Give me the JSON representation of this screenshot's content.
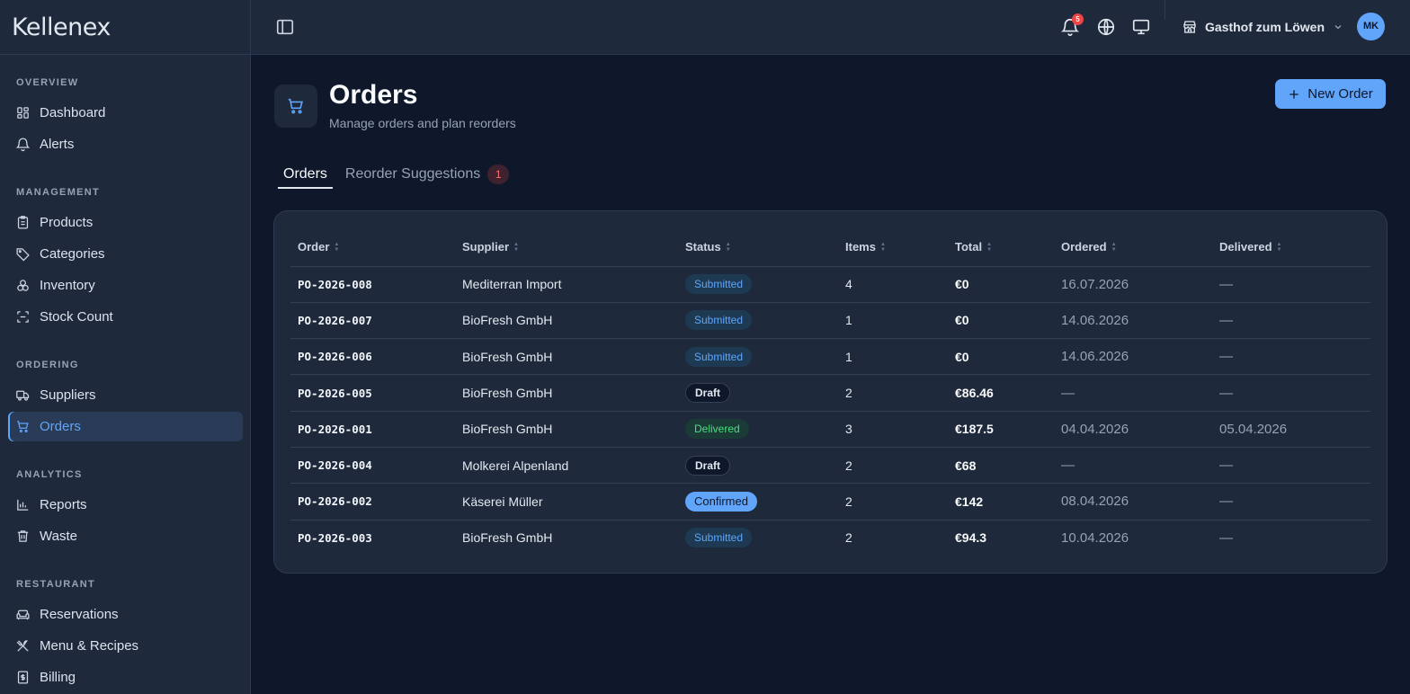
{
  "brand": "Kellenex",
  "sidebar": {
    "sections": [
      {
        "title": "OVERVIEW",
        "items": [
          {
            "label": "Dashboard",
            "icon": "dashboard-icon"
          },
          {
            "label": "Alerts",
            "icon": "bell-icon"
          }
        ]
      },
      {
        "title": "MANAGEMENT",
        "items": [
          {
            "label": "Products",
            "icon": "clipboard-icon"
          },
          {
            "label": "Categories",
            "icon": "tag-icon"
          },
          {
            "label": "Inventory",
            "icon": "boxes-icon"
          },
          {
            "label": "Stock Count",
            "icon": "scan-icon"
          }
        ]
      },
      {
        "title": "ORDERING",
        "items": [
          {
            "label": "Suppliers",
            "icon": "truck-icon"
          },
          {
            "label": "Orders",
            "icon": "cart-icon",
            "active": true
          }
        ]
      },
      {
        "title": "ANALYTICS",
        "items": [
          {
            "label": "Reports",
            "icon": "bar-chart-icon"
          },
          {
            "label": "Waste",
            "icon": "trash-icon"
          }
        ]
      },
      {
        "title": "RESTAURANT",
        "items": [
          {
            "label": "Reservations",
            "icon": "sofa-icon"
          },
          {
            "label": "Menu & Recipes",
            "icon": "utensils-icon"
          },
          {
            "label": "Billing",
            "icon": "receipt-icon"
          }
        ]
      }
    ]
  },
  "topbar": {
    "notification_count": "5",
    "venue": "Gasthof zum Löwen",
    "avatar": "MK"
  },
  "page": {
    "title": "Orders",
    "subtitle": "Manage orders and plan reorders",
    "new_order_label": "New Order"
  },
  "tabs": [
    {
      "label": "Orders",
      "active": true
    },
    {
      "label": "Reorder Suggestions",
      "badge": "1"
    }
  ],
  "table": {
    "headers": [
      "Order",
      "Supplier",
      "Status",
      "Items",
      "Total",
      "Ordered",
      "Delivered"
    ],
    "rows": [
      {
        "order": "PO-2026-008",
        "supplier": "Mediterran Import",
        "status": "Submitted",
        "items": "4",
        "total": "€0",
        "ordered": "16.07.2026",
        "delivered": "—"
      },
      {
        "order": "PO-2026-007",
        "supplier": "BioFresh GmbH",
        "status": "Submitted",
        "items": "1",
        "total": "€0",
        "ordered": "14.06.2026",
        "delivered": "—"
      },
      {
        "order": "PO-2026-006",
        "supplier": "BioFresh GmbH",
        "status": "Submitted",
        "items": "1",
        "total": "€0",
        "ordered": "14.06.2026",
        "delivered": "—"
      },
      {
        "order": "PO-2026-005",
        "supplier": "BioFresh GmbH",
        "status": "Draft",
        "items": "2",
        "total": "€86.46",
        "ordered": "—",
        "delivered": "—"
      },
      {
        "order": "PO-2026-001",
        "supplier": "BioFresh GmbH",
        "status": "Delivered",
        "items": "3",
        "total": "€187.5",
        "ordered": "04.04.2026",
        "delivered": "05.04.2026"
      },
      {
        "order": "PO-2026-004",
        "supplier": "Molkerei Alpenland",
        "status": "Draft",
        "items": "2",
        "total": "€68",
        "ordered": "—",
        "delivered": "—"
      },
      {
        "order": "PO-2026-002",
        "supplier": "Käserei Müller",
        "status": "Confirmed",
        "items": "2",
        "total": "€142",
        "ordered": "08.04.2026",
        "delivered": "—"
      },
      {
        "order": "PO-2026-003",
        "supplier": "BioFresh GmbH",
        "status": "Submitted",
        "items": "2",
        "total": "€94.3",
        "ordered": "10.04.2026",
        "delivered": "—"
      }
    ]
  }
}
